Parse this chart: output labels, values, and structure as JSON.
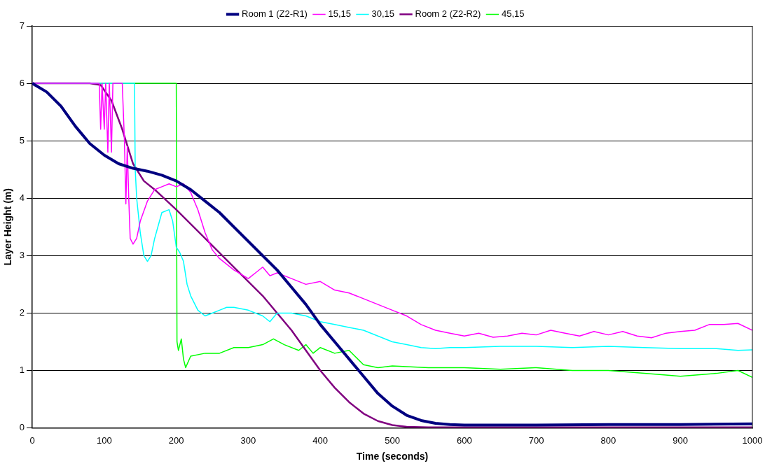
{
  "chart_data": {
    "type": "line",
    "xlabel": "Time (seconds)",
    "ylabel": "Layer Height (m)",
    "xlim": [
      0,
      1000
    ],
    "xticks": [
      0,
      100,
      200,
      300,
      400,
      500,
      600,
      700,
      800,
      900,
      1000
    ],
    "ylim": [
      0,
      7
    ],
    "yticks": [
      0,
      1,
      2,
      3,
      4,
      5,
      6,
      7
    ],
    "grid": "y",
    "legend": "top",
    "marker": "none",
    "line_style": "solid",
    "series": [
      {
        "name": "Room 1 (Z2-R1)",
        "color": "#000080",
        "x": [
          0,
          20,
          40,
          60,
          80,
          100,
          120,
          140,
          160,
          180,
          200,
          220,
          240,
          260,
          280,
          300,
          320,
          340,
          360,
          380,
          400,
          420,
          440,
          460,
          480,
          500,
          520,
          540,
          560,
          580,
          600,
          700,
          800,
          900,
          1000
        ],
        "values": [
          6,
          5.85,
          5.6,
          5.25,
          4.95,
          4.75,
          4.6,
          4.52,
          4.47,
          4.4,
          4.3,
          4.15,
          3.95,
          3.75,
          3.5,
          3.25,
          3.0,
          2.75,
          2.45,
          2.15,
          1.8,
          1.5,
          1.2,
          0.9,
          0.6,
          0.38,
          0.22,
          0.13,
          0.08,
          0.06,
          0.05,
          0.05,
          0.06,
          0.06,
          0.07
        ]
      },
      {
        "name": "15,15",
        "color": "#ff00ff",
        "x": [
          0,
          93,
          95,
          97,
          100,
          102,
          105,
          107,
          110,
          112,
          125,
          128,
          130,
          132,
          134,
          136,
          140,
          145,
          150,
          160,
          170,
          180,
          190,
          200,
          210,
          220,
          230,
          240,
          250,
          260,
          270,
          280,
          300,
          310,
          320,
          330,
          340,
          360,
          380,
          400,
          420,
          440,
          460,
          480,
          500,
          520,
          540,
          560,
          580,
          600,
          620,
          640,
          660,
          680,
          700,
          720,
          740,
          760,
          780,
          800,
          820,
          840,
          860,
          880,
          900,
          920,
          940,
          960,
          980,
          1000
        ],
        "values": [
          6,
          6,
          5.2,
          6,
          5.2,
          6,
          4.8,
          6,
          4.8,
          6,
          6,
          5,
          3.9,
          4.9,
          4.0,
          3.3,
          3.2,
          3.3,
          3.6,
          3.95,
          4.15,
          4.2,
          4.25,
          4.2,
          4.25,
          4.1,
          3.8,
          3.4,
          3.1,
          2.95,
          2.85,
          2.75,
          2.6,
          2.7,
          2.8,
          2.65,
          2.7,
          2.6,
          2.5,
          2.55,
          2.4,
          2.35,
          2.25,
          2.15,
          2.05,
          1.95,
          1.8,
          1.7,
          1.65,
          1.6,
          1.65,
          1.58,
          1.6,
          1.65,
          1.62,
          1.7,
          1.65,
          1.6,
          1.68,
          1.62,
          1.68,
          1.6,
          1.57,
          1.65,
          1.68,
          1.7,
          1.8,
          1.8,
          1.82,
          1.7
        ]
      },
      {
        "name": "30,15",
        "color": "#00ffff",
        "x": [
          0,
          142,
          143,
          145,
          150,
          155,
          160,
          165,
          170,
          180,
          190,
          195,
          200,
          205,
          210,
          215,
          220,
          230,
          240,
          250,
          260,
          270,
          280,
          300,
          320,
          330,
          340,
          360,
          380,
          400,
          420,
          440,
          460,
          480,
          500,
          520,
          540,
          560,
          580,
          600,
          650,
          700,
          750,
          800,
          850,
          900,
          950,
          980,
          1000
        ],
        "values": [
          6,
          6,
          4.5,
          4.0,
          3.4,
          3.0,
          2.9,
          3.0,
          3.3,
          3.75,
          3.8,
          3.6,
          3.15,
          3.05,
          2.9,
          2.5,
          2.3,
          2.05,
          1.95,
          2.0,
          2.05,
          2.1,
          2.1,
          2.05,
          1.95,
          1.85,
          2.0,
          2.0,
          1.95,
          1.85,
          1.8,
          1.75,
          1.7,
          1.6,
          1.5,
          1.45,
          1.4,
          1.38,
          1.4,
          1.4,
          1.42,
          1.42,
          1.4,
          1.42,
          1.4,
          1.38,
          1.38,
          1.35,
          1.36
        ]
      },
      {
        "name": "Room 2 (Z2-R2)",
        "color": "#800080",
        "x": [
          0,
          80,
          95,
          110,
          125,
          140,
          155,
          170,
          200,
          240,
          280,
          320,
          360,
          380,
          400,
          420,
          440,
          460,
          480,
          500,
          520,
          550,
          1000
        ],
        "values": [
          6,
          6,
          5.97,
          5.7,
          5.2,
          4.6,
          4.3,
          4.15,
          3.8,
          3.3,
          2.8,
          2.3,
          1.7,
          1.35,
          1.0,
          0.7,
          0.45,
          0.25,
          0.12,
          0.05,
          0.02,
          0.01,
          0.01
        ]
      },
      {
        "name": "45,15",
        "color": "#00ff00",
        "x": [
          0,
          200,
          201,
          203,
          207,
          210,
          213,
          220,
          240,
          260,
          280,
          300,
          320,
          335,
          350,
          370,
          380,
          390,
          400,
          420,
          440,
          460,
          480,
          500,
          550,
          600,
          650,
          700,
          750,
          800,
          850,
          880,
          900,
          950,
          980,
          1000
        ],
        "values": [
          6,
          6,
          1.5,
          1.35,
          1.55,
          1.2,
          1.05,
          1.25,
          1.3,
          1.3,
          1.4,
          1.4,
          1.45,
          1.55,
          1.45,
          1.35,
          1.45,
          1.3,
          1.4,
          1.3,
          1.35,
          1.1,
          1.05,
          1.08,
          1.05,
          1.05,
          1.02,
          1.05,
          1.0,
          1.0,
          0.95,
          0.92,
          0.9,
          0.95,
          1.0,
          0.88
        ]
      }
    ]
  }
}
